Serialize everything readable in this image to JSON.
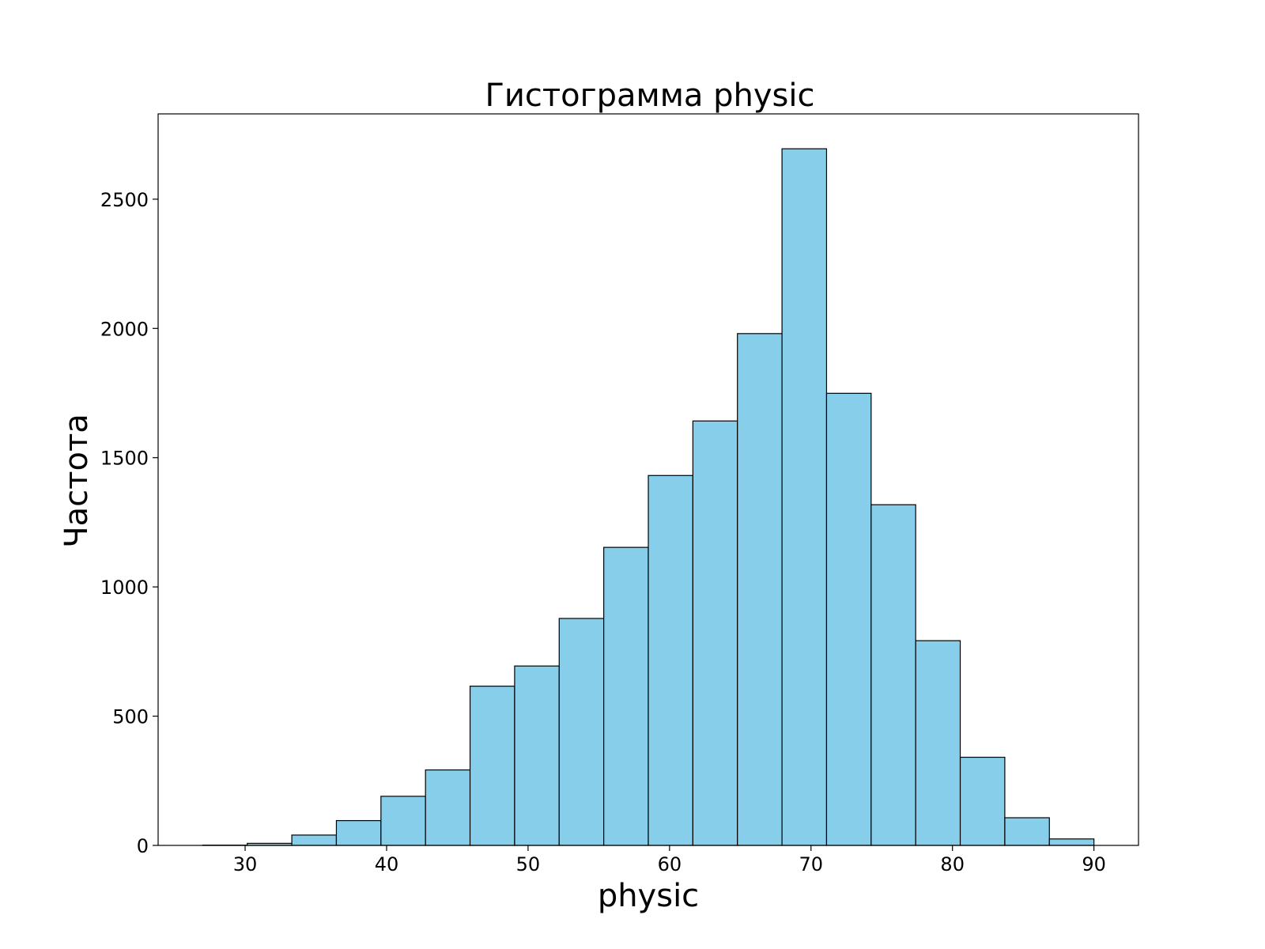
{
  "chart_data": {
    "type": "bar",
    "title": "Гистограмма physic",
    "xlabel": "physic",
    "ylabel": "Частота",
    "bin_edges": [
      27.0,
      30.15,
      33.3,
      36.45,
      39.6,
      42.75,
      45.9,
      49.05,
      52.2,
      55.35,
      58.5,
      61.65,
      64.8,
      67.95,
      71.1,
      74.25,
      77.4,
      80.55,
      83.7,
      86.85,
      90.0
    ],
    "values": [
      1,
      8,
      40,
      96,
      190,
      292,
      616,
      694,
      878,
      1153,
      1431,
      1642,
      1980,
      2695,
      1749,
      1318,
      792,
      341,
      107,
      25
    ],
    "xlim": [
      23.85,
      93.15
    ],
    "ylim": [
      0,
      2830
    ],
    "x_ticks": [
      30,
      40,
      50,
      60,
      70,
      80,
      90
    ],
    "y_ticks": [
      0,
      500,
      1000,
      1500,
      2000,
      2500
    ],
    "grid": false,
    "colors": {
      "bar_fill": "#87ceeb",
      "bar_edge": "#000000",
      "axis": "#000000",
      "background": "#ffffff"
    }
  }
}
